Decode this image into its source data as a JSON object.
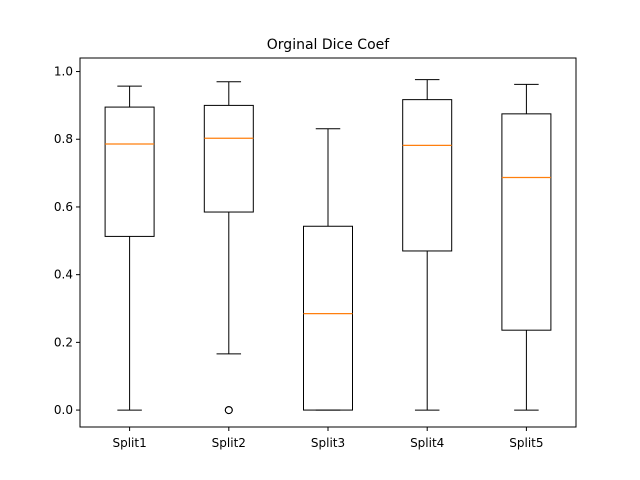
{
  "chart_data": {
    "type": "box",
    "title": "Orginal Dice Coef",
    "xlabel": "",
    "ylabel": "",
    "categories": [
      "Split1",
      "Split2",
      "Split3",
      "Split4",
      "Split5"
    ],
    "ylim": [
      -0.05,
      1.04
    ],
    "yticks": [
      0.0,
      0.2,
      0.4,
      0.6,
      0.8,
      1.0
    ],
    "ytick_labels": [
      "0.0",
      "0.2",
      "0.4",
      "0.6",
      "0.8",
      "1.0"
    ],
    "grid": false,
    "series": [
      {
        "name": "Split1",
        "whislo": 0.0,
        "q1": 0.513,
        "median": 0.786,
        "q3": 0.895,
        "whishi": 0.957,
        "fliers": []
      },
      {
        "name": "Split2",
        "whislo": 0.166,
        "q1": 0.585,
        "median": 0.803,
        "q3": 0.9,
        "whishi": 0.97,
        "fliers": [
          0.0,
          0.0
        ]
      },
      {
        "name": "Split3",
        "whislo": 0.0,
        "q1": 0.0,
        "median": 0.285,
        "q3": 0.543,
        "whishi": 0.831,
        "fliers": []
      },
      {
        "name": "Split4",
        "whislo": 0.0,
        "q1": 0.47,
        "median": 0.782,
        "q3": 0.917,
        "whishi": 0.976,
        "fliers": []
      },
      {
        "name": "Split5",
        "whislo": 0.0,
        "q1": 0.236,
        "median": 0.687,
        "q3": 0.875,
        "whishi": 0.962,
        "fliers": []
      }
    ],
    "colors": {
      "box": "#000000",
      "median": "#ff7f0e",
      "whisker": "#000000",
      "flier": "#000000"
    }
  }
}
